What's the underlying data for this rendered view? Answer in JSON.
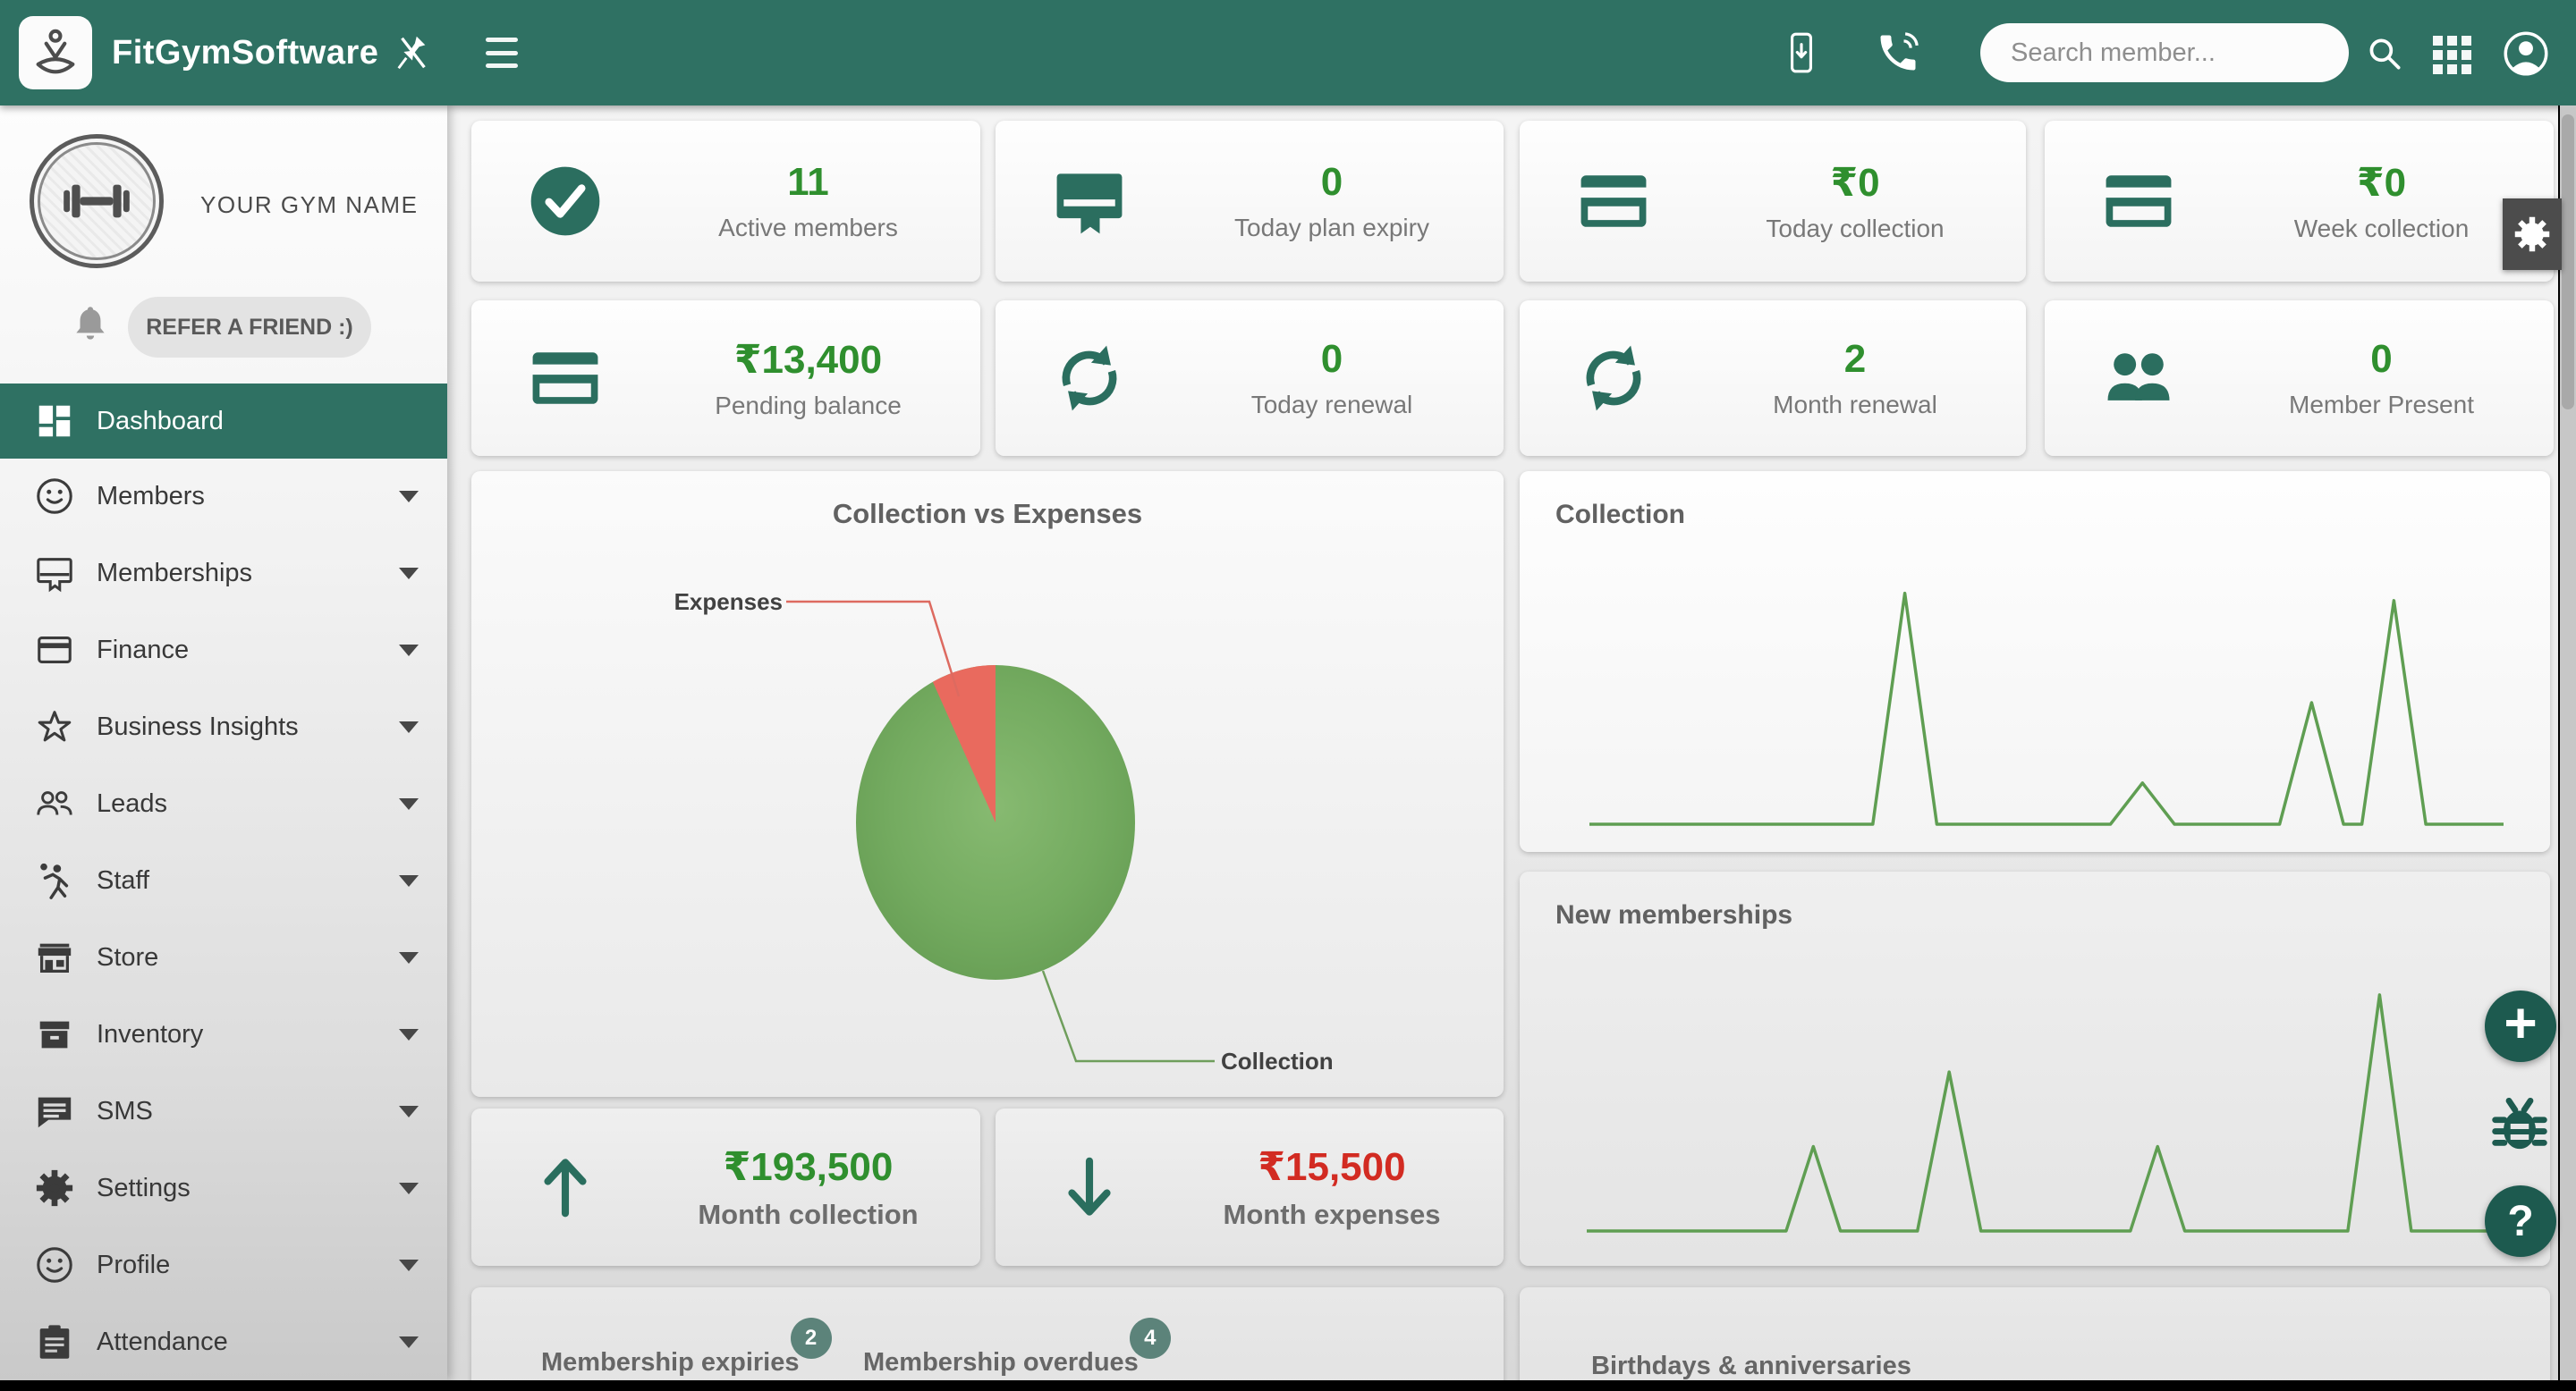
{
  "header": {
    "brand": "FitGymSoftware",
    "search": {
      "placeholder": "Search member...",
      "value": ""
    },
    "icons": [
      "pin-off-icon",
      "menu-icon",
      "mobile-app-icon",
      "phone-icon",
      "search-icon",
      "apps-grid-icon",
      "account-icon"
    ]
  },
  "sidebar": {
    "gym_name": "YOUR GYM NAME",
    "refer_button": "REFER A FRIEND :)",
    "items": [
      {
        "label": "Dashboard",
        "icon": "dashboard-icon",
        "active": true
      },
      {
        "label": "Members",
        "icon": "smiley-icon"
      },
      {
        "label": "Memberships",
        "icon": "membership-card-icon"
      },
      {
        "label": "Finance",
        "icon": "credit-card-icon"
      },
      {
        "label": "Business Insights",
        "icon": "star-icon"
      },
      {
        "label": "Leads",
        "icon": "people-icon"
      },
      {
        "label": "Staff",
        "icon": "sports-person-icon"
      },
      {
        "label": "Store",
        "icon": "storefront-icon"
      },
      {
        "label": "Inventory",
        "icon": "box-icon"
      },
      {
        "label": "SMS",
        "icon": "chat-icon"
      },
      {
        "label": "Settings",
        "icon": "gear-icon"
      },
      {
        "label": "Profile",
        "icon": "smiley-icon"
      },
      {
        "label": "Attendance",
        "icon": "clipboard-icon"
      }
    ]
  },
  "stats": [
    {
      "icon": "check-circle-icon",
      "value": "11",
      "label": "Active members"
    },
    {
      "icon": "membership-card-icon",
      "value": "0",
      "label": "Today plan expiry"
    },
    {
      "icon": "credit-card-icon",
      "value": "₹0",
      "label": "Today collection"
    },
    {
      "icon": "credit-card-icon",
      "value": "₹0",
      "label": "Week collection"
    },
    {
      "icon": "credit-card-icon",
      "value": "₹13,400",
      "label": "Pending balance"
    },
    {
      "icon": "renewal-icon",
      "value": "0",
      "label": "Today renewal"
    },
    {
      "icon": "renewal-icon",
      "value": "2",
      "label": "Month renewal"
    },
    {
      "icon": "people-icon",
      "value": "0",
      "label": "Member Present"
    }
  ],
  "month_summary": [
    {
      "icon": "arrow-up-icon",
      "value": "₹193,500",
      "label": "Month collection",
      "trend": "up"
    },
    {
      "icon": "arrow-down-icon",
      "value": "₹15,500",
      "label": "Month expenses",
      "trend": "down"
    }
  ],
  "bottom": {
    "tabs": [
      {
        "label": "Membership expiries",
        "badge": "2"
      },
      {
        "label": "Membership overdues",
        "badge": "4"
      }
    ],
    "birthdays_title": "Birthdays & anniversaries"
  },
  "chart_data": [
    {
      "id": "collection-vs-expenses",
      "type": "pie",
      "title": "Collection vs Expenses",
      "labels": [
        "Collection",
        "Expenses"
      ],
      "values": [
        193500,
        15500
      ],
      "colors": [
        "#6fa65a",
        "#e96a5e"
      ],
      "legend_position": "callout-labels"
    },
    {
      "id": "collection",
      "type": "line",
      "title": "Collection",
      "color": "#5f9e52",
      "ylim": [
        0,
        1
      ],
      "units": "relative-height (no axes shown in UI)",
      "points": [
        [
          0,
          0
        ],
        [
          31,
          0
        ],
        [
          34.5,
          0.95
        ],
        [
          38,
          0
        ],
        [
          57,
          0
        ],
        [
          60.5,
          0.17
        ],
        [
          64,
          0
        ],
        [
          75.5,
          0
        ],
        [
          79,
          0.5
        ],
        [
          82.5,
          0
        ],
        [
          84.5,
          0
        ],
        [
          88,
          0.92
        ],
        [
          91.5,
          0
        ],
        [
          100,
          0
        ]
      ]
    },
    {
      "id": "new-memberships",
      "type": "line",
      "title": "New memberships",
      "color": "#5f9e52",
      "ylim": [
        0,
        1
      ],
      "units": "relative-height (no axes shown in UI)",
      "points": [
        [
          0,
          0
        ],
        [
          22,
          0
        ],
        [
          25,
          0.34
        ],
        [
          28,
          0
        ],
        [
          36.5,
          0
        ],
        [
          40,
          0.64
        ],
        [
          43.5,
          0
        ],
        [
          60,
          0
        ],
        [
          63,
          0.34
        ],
        [
          66,
          0
        ],
        [
          84,
          0
        ],
        [
          87.5,
          0.95
        ],
        [
          91,
          0
        ],
        [
          100,
          0
        ]
      ]
    }
  ],
  "colors": {
    "header_teal": "#2f7163",
    "stat_green": "#2f8f2e",
    "expense_red": "#d22b22",
    "pie_green": "#6fa65a",
    "pie_red": "#e96a5e",
    "line_green": "#5f9e52",
    "badge_teal": "#5c837a",
    "fab_teal": "#1d5a4f"
  }
}
